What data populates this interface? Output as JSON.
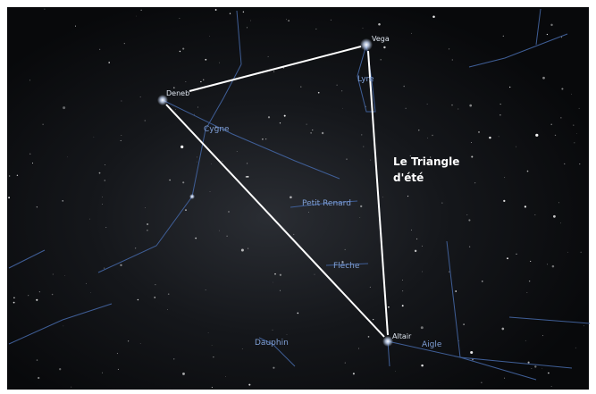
{
  "stars": [
    {
      "label": "Vega"
    },
    {
      "label": "Deneb"
    },
    {
      "label": "Altair"
    }
  ],
  "constellations": [
    {
      "label": "Cygne"
    },
    {
      "label": "Lyre"
    },
    {
      "label": "Petit Renard"
    },
    {
      "label": "Flèche"
    },
    {
      "label": "Dauphin"
    },
    {
      "label": "Aigle"
    }
  ],
  "annotation": {
    "lines": [
      "Le Triangle",
      "d'été"
    ]
  }
}
